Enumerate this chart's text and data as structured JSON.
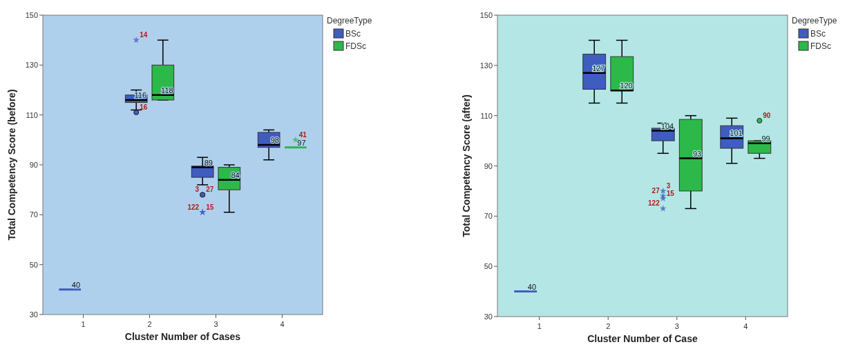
{
  "chart_data": [
    {
      "type": "box",
      "xlabel": "Cluster Number of Cases",
      "ylabel": "Total Competency Score (before)",
      "legend_title": "DegreeType",
      "legend": "top right",
      "grid": false,
      "categories": [
        "1",
        "2",
        "3",
        "4"
      ],
      "ylim": [
        30,
        150
      ],
      "yticks": [
        30,
        50,
        70,
        90,
        110,
        130,
        150
      ],
      "series": [
        {
          "name": "BSc",
          "color": "#3f5cbf",
          "boxes": [
            {
              "low": 40,
              "q1": 40,
              "median": 40,
              "q3": 40,
              "high": 40
            },
            {
              "low": 112,
              "q1": 115,
              "median": 116,
              "q3": 118,
              "high": 120,
              "outliers": [
                140,
                111
              ]
            },
            {
              "low": 82,
              "q1": 85,
              "median": 89,
              "q3": 89.5,
              "high": 93,
              "outliers": [
                78,
                78,
                71,
                71
              ]
            },
            {
              "low": 92,
              "q1": 97,
              "median": 98,
              "q3": 103,
              "high": 104
            }
          ]
        },
        {
          "name": "FDSc",
          "color": "#2db84a",
          "boxes": [
            null,
            {
              "low": 116,
              "q1": 116,
              "median": 118,
              "q3": 130,
              "high": 140
            },
            {
              "low": 71,
              "q1": 80,
              "median": 84,
              "q3": 89,
              "high": 90
            },
            {
              "low": 97,
              "q1": 97,
              "median": 97,
              "q3": 97,
              "high": 97,
              "outliers": [
                100
              ]
            }
          ]
        }
      ],
      "annotations": [
        {
          "text": "40",
          "x": "1",
          "y": 40
        },
        {
          "text": "116",
          "x": "2",
          "y": 116
        },
        {
          "text": "118",
          "x": "2",
          "y": 118
        },
        {
          "text": "89",
          "x": "3",
          "y": 89
        },
        {
          "text": "84",
          "x": "3",
          "y": 84
        },
        {
          "text": "98",
          "x": "4",
          "y": 98
        },
        {
          "text": "97",
          "x": "4",
          "y": 97
        },
        "14",
        "16",
        "27",
        "3",
        "15",
        "122",
        "41"
      ]
    },
    {
      "type": "box",
      "xlabel": "Cluster Number of Case",
      "ylabel": "Total Competency Score (after)",
      "legend_title": "DegreeType",
      "legend": "top right",
      "grid": false,
      "categories": [
        "1",
        "2",
        "3",
        "4"
      ],
      "ylim": [
        30,
        150
      ],
      "yticks": [
        30,
        50,
        70,
        90,
        110,
        130,
        150
      ],
      "series": [
        {
          "name": "BSc",
          "color": "#3f5cbf",
          "boxes": [
            {
              "low": 40,
              "q1": 40,
              "median": 40,
              "q3": 40,
              "high": 40
            },
            {
              "low": 115,
              "q1": 120.5,
              "median": 127,
              "q3": 134.5,
              "high": 140
            },
            {
              "low": 95,
              "q1": 100,
              "median": 104,
              "q3": 105,
              "high": 107,
              "outliers": [
                80,
                78,
                77,
                73
              ]
            },
            {
              "low": 91,
              "q1": 97,
              "median": 101,
              "q3": 106,
              "high": 109
            }
          ]
        },
        {
          "name": "FDSc",
          "color": "#2db84a",
          "boxes": [
            null,
            {
              "low": 115,
              "q1": 120,
              "median": 120,
              "q3": 133.5,
              "high": 140
            },
            {
              "low": 73,
              "q1": 80,
              "median": 93,
              "q3": 108.5,
              "high": 110
            },
            {
              "low": 93,
              "q1": 95,
              "median": 99,
              "q3": 100,
              "high": 100,
              "outliers": [
                108
              ]
            }
          ]
        }
      ],
      "annotations": [
        {
          "text": "40",
          "x": "1",
          "y": 40
        },
        {
          "text": "127",
          "x": "2",
          "y": 127
        },
        {
          "text": "120",
          "x": "2",
          "y": 120
        },
        {
          "text": "104",
          "x": "3",
          "y": 104
        },
        {
          "text": "93",
          "x": "3",
          "y": 93
        },
        {
          "text": "101",
          "x": "4",
          "y": 101
        },
        {
          "text": "99",
          "x": "4",
          "y": 99
        },
        "3",
        "27",
        "15",
        "122",
        "90"
      ]
    }
  ]
}
